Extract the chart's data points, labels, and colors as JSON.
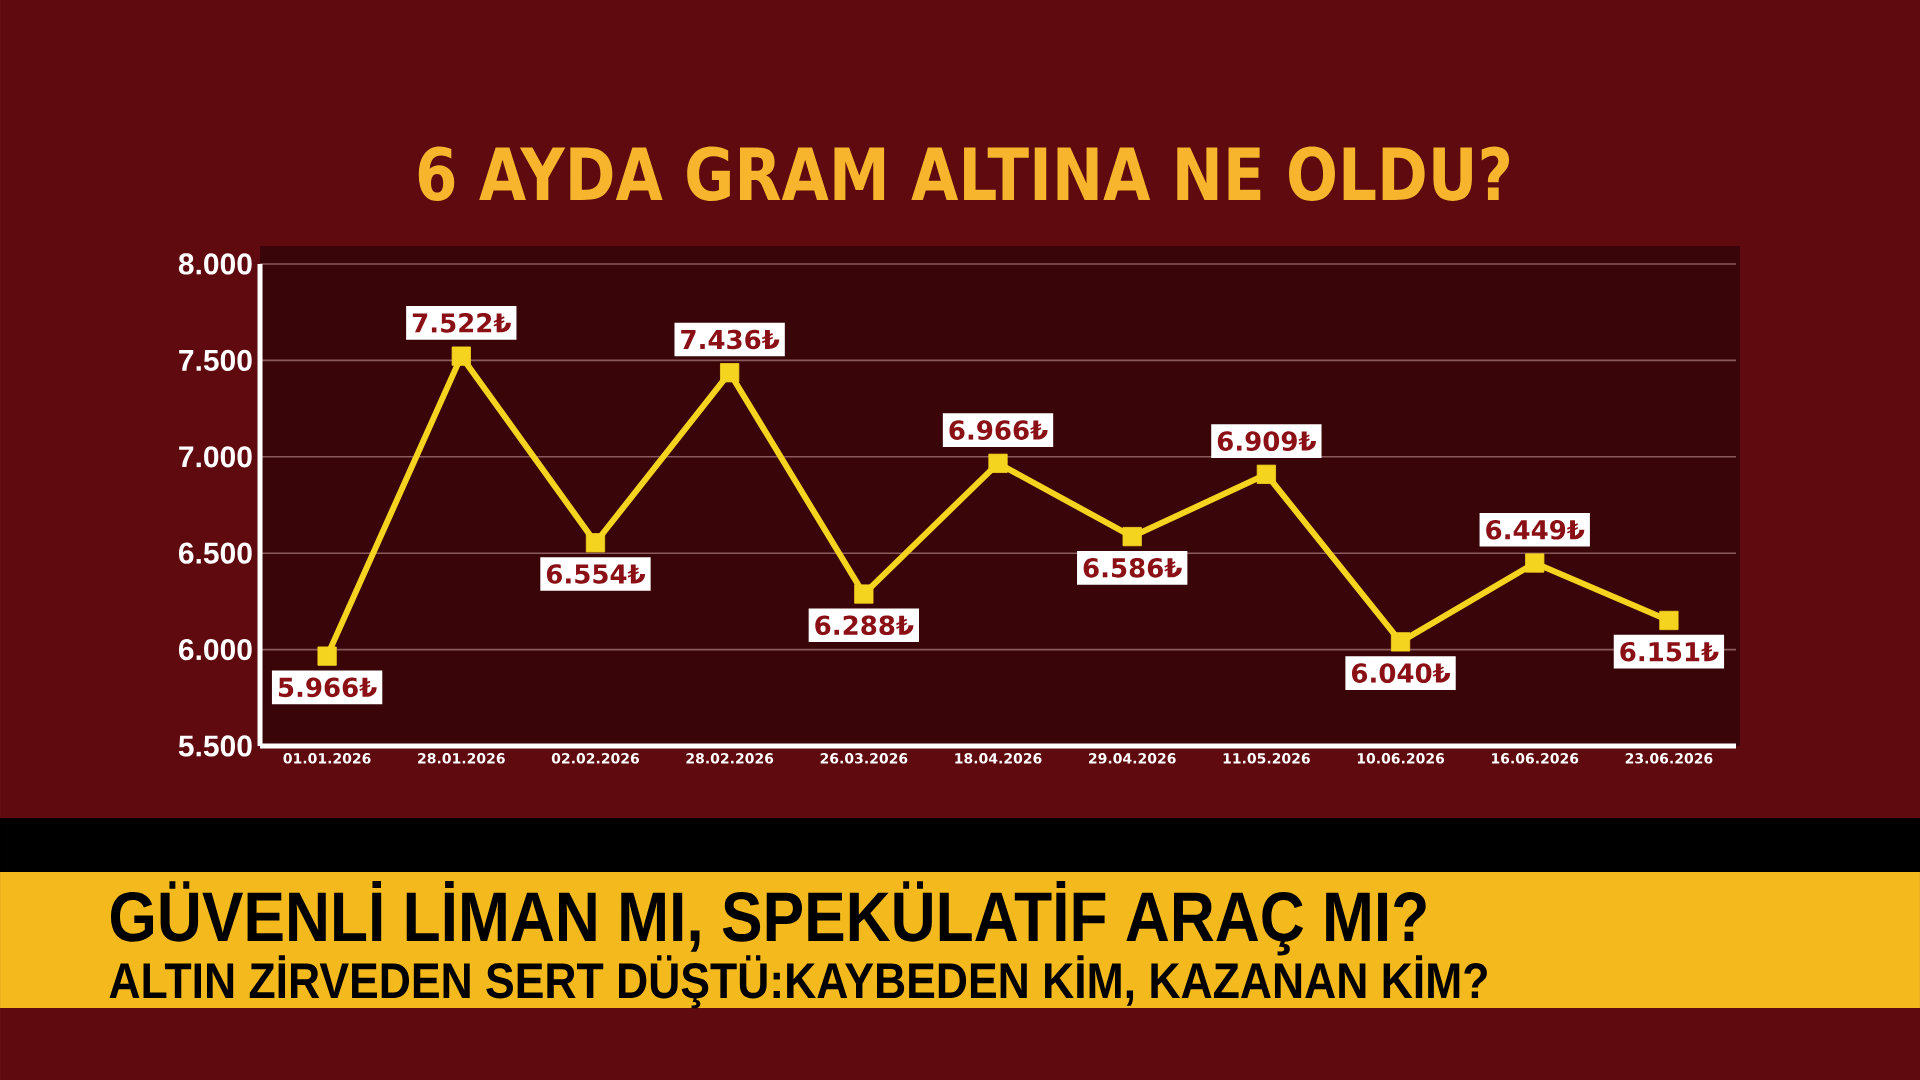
{
  "chart_data": {
    "type": "line",
    "title": "6 AYDA GRAM ALTINA NE OLDU?",
    "categories": [
      "01.01.2026",
      "28.01.2026",
      "02.02.2026",
      "28.02.2026",
      "26.03.2026",
      "18.04.2026",
      "29.04.2026",
      "11.05.2026",
      "10.06.2026",
      "16.06.2026",
      "23.06.2026"
    ],
    "values": [
      5966,
      7522,
      6554,
      7436,
      6288,
      6966,
      6586,
      6909,
      6040,
      6449,
      6151
    ],
    "value_labels": [
      "5.966₺",
      "7.522₺",
      "6.554₺",
      "7.436₺",
      "6.288₺",
      "6.966₺",
      "6.586₺",
      "6.909₺",
      "6.040₺",
      "6.449₺",
      "6.151₺"
    ],
    "color": "#f5d420",
    "marker": "square",
    "line_style": "solid",
    "grid": "y",
    "ylim": [
      5500,
      8000
    ],
    "yticks": [
      {
        "value": 5500,
        "label": "5.500"
      },
      {
        "value": 6000,
        "label": "6.000"
      },
      {
        "value": 6500,
        "label": "6.500"
      },
      {
        "value": 7000,
        "label": "7.000"
      },
      {
        "value": 7500,
        "label": "7.500"
      },
      {
        "value": 8000,
        "label": "8.000"
      }
    ],
    "annotations": [
      "GÜVENLİ LİMAN MI, SPEKÜLATİF ARAÇ MI?",
      "ALTIN ZİRVEDEN SERT DÜŞTÜ:KAYBEDEN KİM, KAZANAN KİM?"
    ]
  }
}
